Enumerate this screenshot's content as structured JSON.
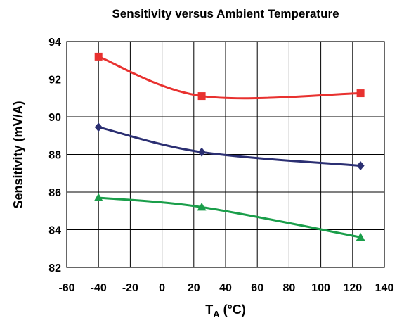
{
  "chart_data": {
    "type": "line",
    "title": "Sensitivity versus Ambient Temperature",
    "xlabel": "T",
    "xlabel_subscript": "A",
    "xlabel_unit": " (°C)",
    "ylabel": "Sensitivity (mV/A)",
    "xlim": [
      -60,
      140
    ],
    "ylim": [
      82,
      94
    ],
    "xticks": [
      -60,
      -40,
      -20,
      0,
      20,
      40,
      60,
      80,
      100,
      120,
      140
    ],
    "yticks": [
      82,
      84,
      86,
      88,
      90,
      92,
      94
    ],
    "grid": true,
    "series": [
      {
        "color": "#e8312f",
        "marker": "square",
        "x": [
          -40,
          25,
          125
        ],
        "y": [
          93.2,
          91.1,
          91.25
        ]
      },
      {
        "color": "#2b2f72",
        "marker": "diamond",
        "x": [
          -40,
          25,
          125
        ],
        "y": [
          89.45,
          88.12,
          87.4
        ]
      },
      {
        "color": "#1a9e4a",
        "marker": "triangle",
        "x": [
          -40,
          25,
          125
        ],
        "y": [
          85.7,
          85.2,
          83.6
        ]
      }
    ]
  }
}
